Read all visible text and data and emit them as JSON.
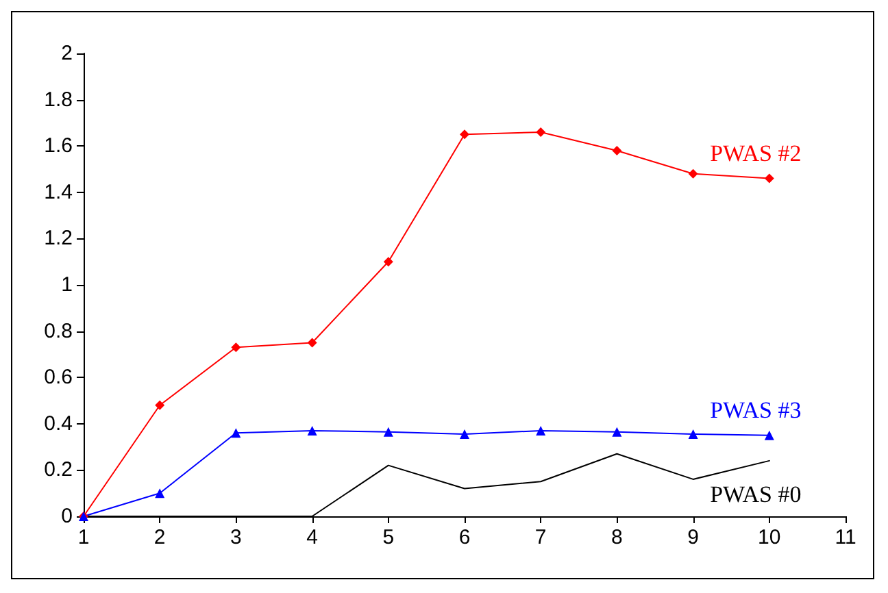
{
  "chart_data": {
    "type": "line",
    "x": [
      1,
      2,
      3,
      4,
      5,
      6,
      7,
      8,
      9,
      10
    ],
    "series": [
      {
        "name": "PWAS #2",
        "color": "#ff0000",
        "marker": "diamond",
        "values": [
          0,
          0.48,
          0.73,
          0.75,
          1.1,
          1.65,
          1.66,
          1.58,
          1.48,
          1.46
        ]
      },
      {
        "name": "PWAS #3",
        "color": "#0000ff",
        "marker": "triangle",
        "values": [
          0,
          0.1,
          0.36,
          0.37,
          0.365,
          0.355,
          0.37,
          0.365,
          0.355,
          0.35
        ]
      },
      {
        "name": "PWAS #0",
        "color": "#000000",
        "marker": "none",
        "values": [
          0,
          0,
          0,
          0,
          0.22,
          0.12,
          0.15,
          0.27,
          0.16,
          0.24
        ]
      }
    ],
    "xlim": [
      1,
      11
    ],
    "xticks": [
      1,
      2,
      3,
      4,
      5,
      6,
      7,
      8,
      9,
      10,
      11
    ],
    "ylim": [
      0,
      2
    ],
    "yticks": [
      0,
      0.2,
      0.4,
      0.6,
      0.8,
      1,
      1.2,
      1.4,
      1.6,
      1.8,
      2
    ],
    "grid": false,
    "legend": false
  }
}
